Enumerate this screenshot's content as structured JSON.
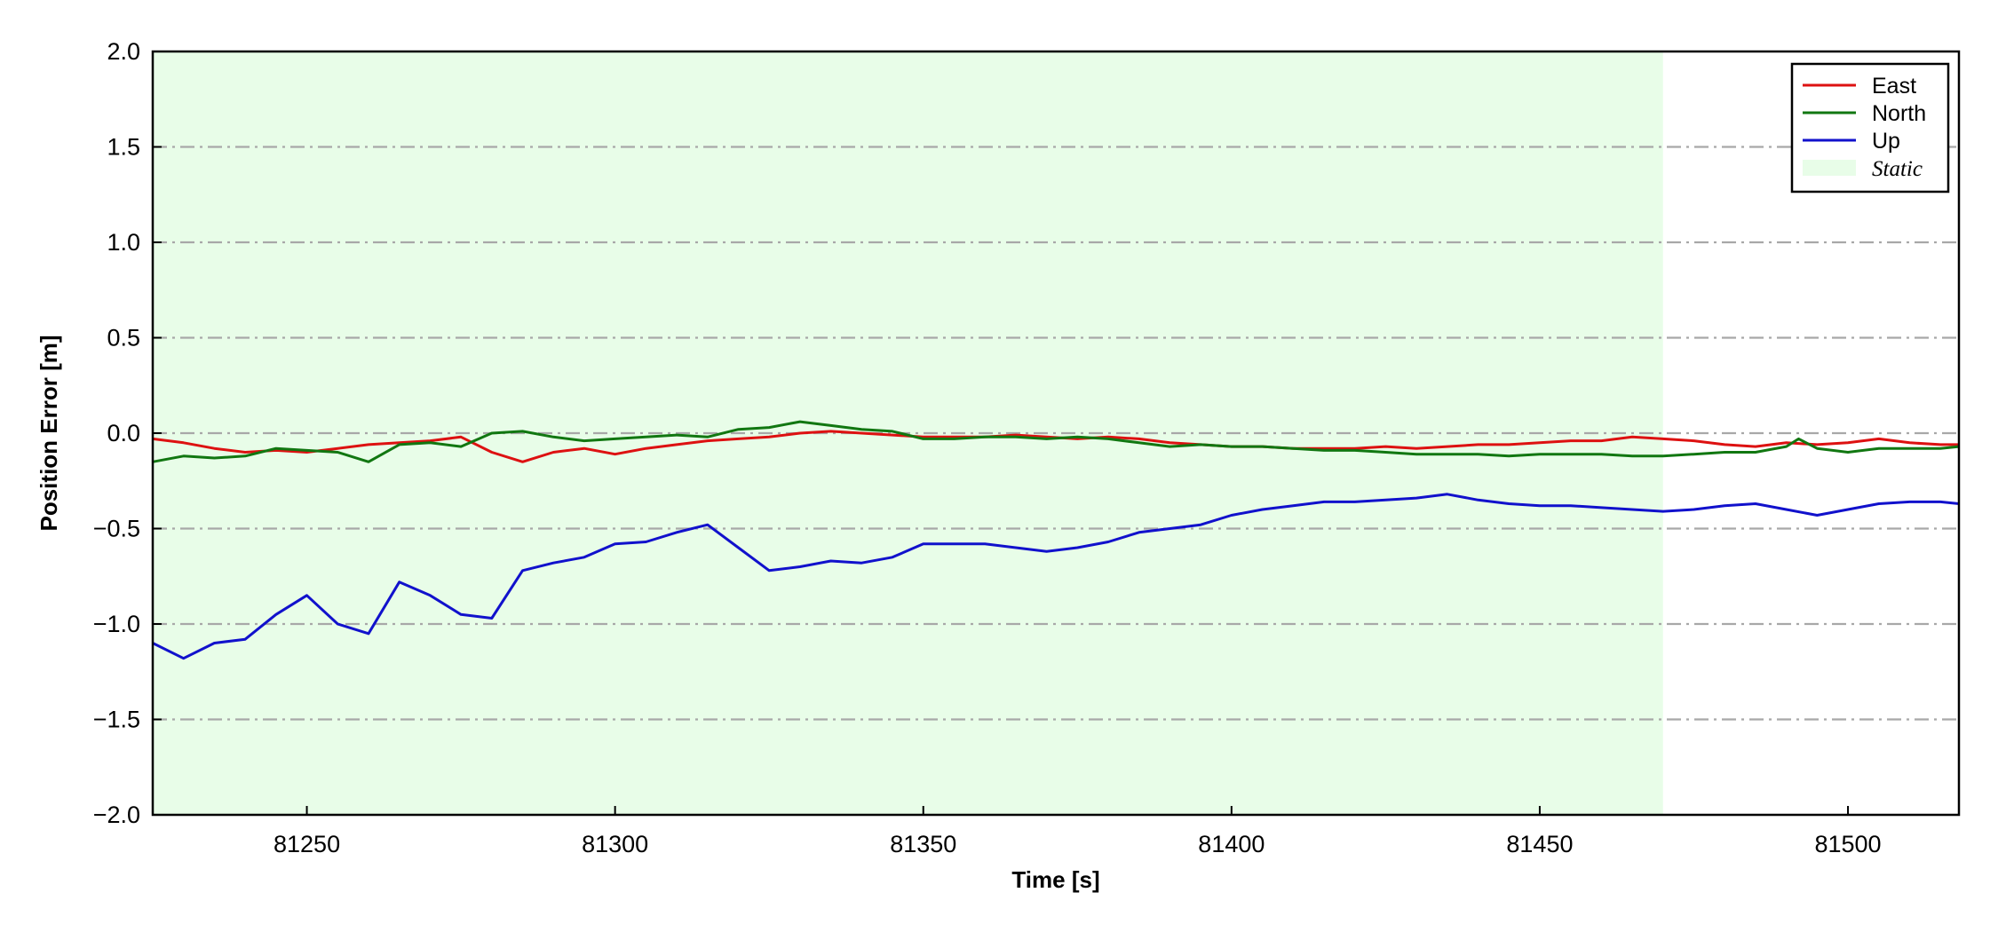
{
  "chart_data": {
    "type": "line",
    "title": "",
    "xlabel": "Time [s]",
    "ylabel": "Position Error [m]",
    "xlim": [
      81225,
      81518
    ],
    "ylim": [
      -2.0,
      2.0
    ],
    "xticks": [
      81250,
      81300,
      81350,
      81400,
      81450,
      81500
    ],
    "xtick_labels": [
      "81250",
      "81300",
      "81350",
      "81400",
      "81450",
      "81500"
    ],
    "yticks": [
      -2.0,
      -1.5,
      -1.0,
      -0.5,
      0.0,
      0.5,
      1.0,
      1.5,
      2.0
    ],
    "ytick_labels": [
      "−2.0",
      "−1.5",
      "−1.0",
      "−0.5",
      "0.0",
      "0.5",
      "1.0",
      "1.5",
      "2.0"
    ],
    "grid": "horizontal dash-dot",
    "legend_position": "top-right",
    "static_region": {
      "name": "Static",
      "x": [
        81225,
        81470
      ],
      "color": "#e8fde8"
    },
    "series": [
      {
        "name": "East",
        "color": "#dd1111",
        "x": [
          81225,
          81230,
          81235,
          81240,
          81245,
          81250,
          81255,
          81260,
          81265,
          81270,
          81275,
          81280,
          81285,
          81290,
          81295,
          81300,
          81305,
          81310,
          81315,
          81320,
          81325,
          81330,
          81335,
          81340,
          81345,
          81350,
          81355,
          81360,
          81365,
          81370,
          81375,
          81380,
          81385,
          81390,
          81395,
          81400,
          81405,
          81410,
          81415,
          81420,
          81425,
          81430,
          81435,
          81440,
          81445,
          81450,
          81455,
          81460,
          81465,
          81470,
          81475,
          81480,
          81485,
          81490,
          81495,
          81500,
          81505,
          81510,
          81515,
          81518
        ],
        "y": [
          -0.03,
          -0.05,
          -0.08,
          -0.1,
          -0.09,
          -0.1,
          -0.08,
          -0.06,
          -0.05,
          -0.04,
          -0.02,
          -0.1,
          -0.15,
          -0.1,
          -0.08,
          -0.11,
          -0.08,
          -0.06,
          -0.04,
          -0.03,
          -0.02,
          0.0,
          0.01,
          0.0,
          -0.01,
          -0.02,
          -0.02,
          -0.02,
          -0.01,
          -0.02,
          -0.03,
          -0.02,
          -0.03,
          -0.05,
          -0.06,
          -0.07,
          -0.07,
          -0.08,
          -0.08,
          -0.08,
          -0.07,
          -0.08,
          -0.07,
          -0.06,
          -0.06,
          -0.05,
          -0.04,
          -0.04,
          -0.02,
          -0.03,
          -0.04,
          -0.06,
          -0.07,
          -0.05,
          -0.06,
          -0.05,
          -0.03,
          -0.05,
          -0.06,
          -0.06
        ]
      },
      {
        "name": "North",
        "color": "#117711",
        "x": [
          81225,
          81230,
          81235,
          81240,
          81245,
          81250,
          81255,
          81260,
          81265,
          81270,
          81275,
          81280,
          81285,
          81290,
          81295,
          81300,
          81305,
          81310,
          81315,
          81320,
          81325,
          81330,
          81335,
          81340,
          81345,
          81350,
          81355,
          81360,
          81365,
          81370,
          81375,
          81380,
          81385,
          81390,
          81395,
          81400,
          81405,
          81410,
          81415,
          81420,
          81425,
          81430,
          81435,
          81440,
          81445,
          81450,
          81455,
          81460,
          81465,
          81470,
          81475,
          81480,
          81485,
          81490,
          81492,
          81495,
          81500,
          81505,
          81510,
          81515,
          81518
        ],
        "y": [
          -0.15,
          -0.12,
          -0.13,
          -0.12,
          -0.08,
          -0.09,
          -0.1,
          -0.15,
          -0.06,
          -0.05,
          -0.07,
          0.0,
          0.01,
          -0.02,
          -0.04,
          -0.03,
          -0.02,
          -0.01,
          -0.02,
          0.02,
          0.03,
          0.06,
          0.04,
          0.02,
          0.01,
          -0.03,
          -0.03,
          -0.02,
          -0.02,
          -0.03,
          -0.02,
          -0.03,
          -0.05,
          -0.07,
          -0.06,
          -0.07,
          -0.07,
          -0.08,
          -0.09,
          -0.09,
          -0.1,
          -0.11,
          -0.11,
          -0.11,
          -0.12,
          -0.11,
          -0.11,
          -0.11,
          -0.12,
          -0.12,
          -0.11,
          -0.1,
          -0.1,
          -0.07,
          -0.03,
          -0.08,
          -0.1,
          -0.08,
          -0.08,
          -0.08,
          -0.07
        ]
      },
      {
        "name": "Up",
        "color": "#1111cc",
        "x": [
          81225,
          81230,
          81235,
          81240,
          81245,
          81250,
          81255,
          81260,
          81265,
          81270,
          81275,
          81280,
          81285,
          81290,
          81295,
          81300,
          81305,
          81310,
          81315,
          81320,
          81325,
          81330,
          81335,
          81340,
          81345,
          81350,
          81355,
          81360,
          81365,
          81370,
          81375,
          81380,
          81385,
          81390,
          81395,
          81400,
          81405,
          81410,
          81415,
          81420,
          81425,
          81430,
          81435,
          81440,
          81445,
          81450,
          81455,
          81460,
          81465,
          81470,
          81475,
          81480,
          81485,
          81490,
          81495,
          81500,
          81505,
          81510,
          81515,
          81518
        ],
        "y": [
          -1.1,
          -1.18,
          -1.1,
          -1.08,
          -0.95,
          -0.85,
          -1.0,
          -1.05,
          -0.78,
          -0.85,
          -0.95,
          -0.97,
          -0.72,
          -0.68,
          -0.65,
          -0.58,
          -0.57,
          -0.52,
          -0.48,
          -0.6,
          -0.72,
          -0.7,
          -0.67,
          -0.68,
          -0.65,
          -0.58,
          -0.58,
          -0.58,
          -0.6,
          -0.62,
          -0.6,
          -0.57,
          -0.52,
          -0.5,
          -0.48,
          -0.43,
          -0.4,
          -0.38,
          -0.36,
          -0.36,
          -0.35,
          -0.34,
          -0.32,
          -0.35,
          -0.37,
          -0.38,
          -0.38,
          -0.39,
          -0.4,
          -0.41,
          -0.4,
          -0.38,
          -0.37,
          -0.4,
          -0.43,
          -0.4,
          -0.37,
          -0.36,
          -0.36,
          -0.37
        ]
      }
    ]
  }
}
